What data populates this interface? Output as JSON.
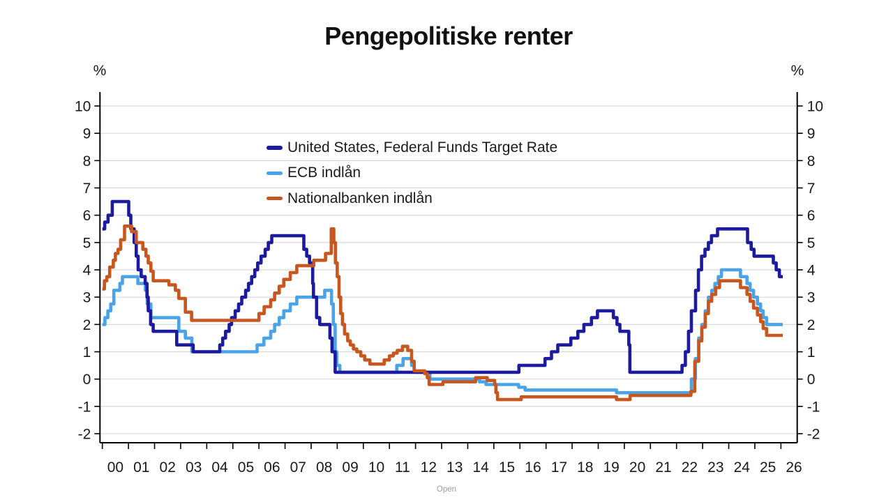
{
  "page": {
    "title": "Pengepolitiske renter",
    "footer_button": "Open"
  },
  "chart_data": {
    "type": "line",
    "title": "Pengepolitiske renter",
    "grid": true,
    "legend_position": "top-left-inside",
    "y_axis": {
      "unit_left": "%",
      "unit_right": "%",
      "min": -2,
      "max": 10,
      "ticks": [
        10,
        9,
        8,
        7,
        6,
        5,
        4,
        3,
        2,
        1,
        0,
        -1,
        -2
      ]
    },
    "x_axis": {
      "start_year": 2000,
      "tick_labels": [
        "00",
        "01",
        "02",
        "03",
        "04",
        "05",
        "06",
        "07",
        "08",
        "09",
        "10",
        "11",
        "12",
        "13",
        "14",
        "15",
        "16",
        "17",
        "18",
        "19",
        "20",
        "21",
        "22",
        "23",
        "24",
        "25",
        "26"
      ],
      "series_end": 2026.07
    },
    "series": [
      {
        "name": "United States, Federal Funds Target Rate",
        "color": "#1c1ba0",
        "points": [
          [
            2000.0,
            5.5
          ],
          [
            2000.09,
            5.75
          ],
          [
            2000.22,
            6.0
          ],
          [
            2000.38,
            6.5
          ],
          [
            2001.01,
            6.0
          ],
          [
            2001.09,
            5.5
          ],
          [
            2001.22,
            5.0
          ],
          [
            2001.3,
            4.5
          ],
          [
            2001.37,
            4.0
          ],
          [
            2001.49,
            3.75
          ],
          [
            2001.64,
            3.5
          ],
          [
            2001.71,
            3.0
          ],
          [
            2001.76,
            2.5
          ],
          [
            2001.85,
            2.0
          ],
          [
            2001.95,
            1.75
          ],
          [
            2002.85,
            1.25
          ],
          [
            2003.48,
            1.0
          ],
          [
            2004.5,
            1.25
          ],
          [
            2004.61,
            1.5
          ],
          [
            2004.72,
            1.75
          ],
          [
            2004.86,
            2.0
          ],
          [
            2004.95,
            2.25
          ],
          [
            2005.09,
            2.5
          ],
          [
            2005.22,
            2.75
          ],
          [
            2005.34,
            3.0
          ],
          [
            2005.49,
            3.25
          ],
          [
            2005.6,
            3.5
          ],
          [
            2005.72,
            3.75
          ],
          [
            2005.84,
            4.0
          ],
          [
            2005.95,
            4.25
          ],
          [
            2006.08,
            4.5
          ],
          [
            2006.24,
            4.75
          ],
          [
            2006.36,
            5.0
          ],
          [
            2006.49,
            5.25
          ],
          [
            2007.72,
            4.75
          ],
          [
            2007.83,
            4.5
          ],
          [
            2007.94,
            4.25
          ],
          [
            2008.06,
            3.5
          ],
          [
            2008.09,
            3.0
          ],
          [
            2008.21,
            2.25
          ],
          [
            2008.33,
            2.0
          ],
          [
            2008.72,
            1.5
          ],
          [
            2008.8,
            1.0
          ],
          [
            2008.92,
            0.25
          ],
          [
            2015.96,
            0.5
          ],
          [
            2016.96,
            0.75
          ],
          [
            2017.21,
            1.0
          ],
          [
            2017.45,
            1.25
          ],
          [
            2017.95,
            1.5
          ],
          [
            2018.22,
            1.75
          ],
          [
            2018.45,
            2.0
          ],
          [
            2018.74,
            2.25
          ],
          [
            2018.97,
            2.5
          ],
          [
            2019.58,
            2.25
          ],
          [
            2019.72,
            2.0
          ],
          [
            2019.83,
            1.75
          ],
          [
            2020.17,
            1.25
          ],
          [
            2020.21,
            0.25
          ],
          [
            2022.21,
            0.5
          ],
          [
            2022.34,
            1.0
          ],
          [
            2022.46,
            1.75
          ],
          [
            2022.57,
            2.5
          ],
          [
            2022.73,
            3.25
          ],
          [
            2022.84,
            4.0
          ],
          [
            2022.96,
            4.5
          ],
          [
            2023.09,
            4.75
          ],
          [
            2023.22,
            5.0
          ],
          [
            2023.34,
            5.25
          ],
          [
            2023.57,
            5.5
          ],
          [
            2024.72,
            5.0
          ],
          [
            2024.86,
            4.75
          ],
          [
            2024.97,
            4.5
          ],
          [
            2025.71,
            4.25
          ],
          [
            2025.82,
            4.0
          ],
          [
            2025.94,
            3.75
          ]
        ]
      },
      {
        "name": "ECB indlån",
        "color": "#4aa3e8",
        "points": [
          [
            2000.0,
            2.0
          ],
          [
            2000.1,
            2.25
          ],
          [
            2000.21,
            2.5
          ],
          [
            2000.32,
            2.75
          ],
          [
            2000.44,
            3.25
          ],
          [
            2000.67,
            3.5
          ],
          [
            2000.77,
            3.75
          ],
          [
            2001.36,
            3.5
          ],
          [
            2001.65,
            3.25
          ],
          [
            2001.72,
            2.75
          ],
          [
            2001.86,
            2.25
          ],
          [
            2002.93,
            1.75
          ],
          [
            2003.18,
            1.5
          ],
          [
            2003.43,
            1.0
          ],
          [
            2005.93,
            1.25
          ],
          [
            2006.19,
            1.5
          ],
          [
            2006.45,
            1.75
          ],
          [
            2006.6,
            2.0
          ],
          [
            2006.78,
            2.25
          ],
          [
            2006.95,
            2.5
          ],
          [
            2007.2,
            2.75
          ],
          [
            2007.45,
            3.0
          ],
          [
            2008.52,
            3.25
          ],
          [
            2008.78,
            2.75
          ],
          [
            2008.85,
            2.0
          ],
          [
            2008.92,
            1.0
          ],
          [
            2008.98,
            0.5
          ],
          [
            2009.1,
            0.25
          ],
          [
            2011.28,
            0.5
          ],
          [
            2011.52,
            0.75
          ],
          [
            2011.85,
            0.5
          ],
          [
            2011.95,
            0.25
          ],
          [
            2012.55,
            0.0
          ],
          [
            2014.45,
            -0.1
          ],
          [
            2014.7,
            -0.2
          ],
          [
            2015.95,
            -0.3
          ],
          [
            2016.2,
            -0.4
          ],
          [
            2019.7,
            -0.5
          ],
          [
            2022.57,
            0.0
          ],
          [
            2022.72,
            0.75
          ],
          [
            2022.85,
            1.5
          ],
          [
            2022.97,
            2.0
          ],
          [
            2023.1,
            2.5
          ],
          [
            2023.22,
            3.0
          ],
          [
            2023.35,
            3.25
          ],
          [
            2023.47,
            3.5
          ],
          [
            2023.6,
            3.75
          ],
          [
            2023.72,
            4.0
          ],
          [
            2024.45,
            3.75
          ],
          [
            2024.7,
            3.5
          ],
          [
            2024.82,
            3.25
          ],
          [
            2024.95,
            3.0
          ],
          [
            2025.1,
            2.75
          ],
          [
            2025.22,
            2.5
          ],
          [
            2025.32,
            2.25
          ],
          [
            2025.45,
            2.0
          ]
        ]
      },
      {
        "name": "Nationalbanken indlån",
        "color": "#c7571f",
        "points": [
          [
            2000.0,
            3.3
          ],
          [
            2000.08,
            3.6
          ],
          [
            2000.17,
            3.75
          ],
          [
            2000.28,
            4.1
          ],
          [
            2000.42,
            4.35
          ],
          [
            2000.5,
            4.6
          ],
          [
            2000.6,
            4.75
          ],
          [
            2000.7,
            5.1
          ],
          [
            2000.85,
            5.6
          ],
          [
            2001.12,
            5.4
          ],
          [
            2001.3,
            5.0
          ],
          [
            2001.55,
            4.75
          ],
          [
            2001.67,
            4.5
          ],
          [
            2001.76,
            4.25
          ],
          [
            2001.86,
            3.95
          ],
          [
            2001.95,
            3.6
          ],
          [
            2002.55,
            3.45
          ],
          [
            2002.8,
            3.25
          ],
          [
            2002.93,
            2.95
          ],
          [
            2003.18,
            2.45
          ],
          [
            2003.42,
            2.15
          ],
          [
            2006.0,
            2.4
          ],
          [
            2006.2,
            2.65
          ],
          [
            2006.45,
            2.9
          ],
          [
            2006.6,
            3.15
          ],
          [
            2006.78,
            3.4
          ],
          [
            2006.95,
            3.65
          ],
          [
            2007.2,
            3.9
          ],
          [
            2007.45,
            4.15
          ],
          [
            2008.1,
            4.35
          ],
          [
            2008.55,
            4.6
          ],
          [
            2008.77,
            5.5
          ],
          [
            2008.87,
            5.0
          ],
          [
            2008.93,
            4.25
          ],
          [
            2009.0,
            3.75
          ],
          [
            2009.07,
            3.0
          ],
          [
            2009.13,
            2.4
          ],
          [
            2009.2,
            2.0
          ],
          [
            2009.28,
            1.65
          ],
          [
            2009.4,
            1.4
          ],
          [
            2009.5,
            1.25
          ],
          [
            2009.62,
            1.1
          ],
          [
            2009.75,
            1.0
          ],
          [
            2009.9,
            0.85
          ],
          [
            2010.05,
            0.7
          ],
          [
            2010.25,
            0.55
          ],
          [
            2010.8,
            0.7
          ],
          [
            2011.0,
            0.85
          ],
          [
            2011.15,
            0.95
          ],
          [
            2011.3,
            1.05
          ],
          [
            2011.5,
            1.2
          ],
          [
            2011.7,
            1.05
          ],
          [
            2011.85,
            0.65
          ],
          [
            2011.95,
            0.3
          ],
          [
            2012.35,
            0.2
          ],
          [
            2012.45,
            0.05
          ],
          [
            2012.52,
            -0.2
          ],
          [
            2013.05,
            -0.1
          ],
          [
            2014.3,
            0.05
          ],
          [
            2014.75,
            -0.05
          ],
          [
            2015.03,
            -0.2
          ],
          [
            2015.08,
            -0.5
          ],
          [
            2015.14,
            -0.75
          ],
          [
            2016.05,
            -0.65
          ],
          [
            2019.7,
            -0.75
          ],
          [
            2020.22,
            -0.6
          ],
          [
            2022.55,
            -0.45
          ],
          [
            2022.7,
            0.65
          ],
          [
            2022.85,
            1.4
          ],
          [
            2022.97,
            1.9
          ],
          [
            2023.1,
            2.4
          ],
          [
            2023.22,
            2.85
          ],
          [
            2023.35,
            3.1
          ],
          [
            2023.5,
            3.35
          ],
          [
            2023.65,
            3.6
          ],
          [
            2024.45,
            3.35
          ],
          [
            2024.7,
            3.1
          ],
          [
            2024.82,
            2.85
          ],
          [
            2024.95,
            2.6
          ],
          [
            2025.1,
            2.35
          ],
          [
            2025.22,
            2.1
          ],
          [
            2025.32,
            1.85
          ],
          [
            2025.45,
            1.6
          ]
        ]
      }
    ],
    "colors": {
      "grid": "#d9d9d9",
      "axis": "#000000",
      "tick_text": "#1a1a1a"
    }
  }
}
